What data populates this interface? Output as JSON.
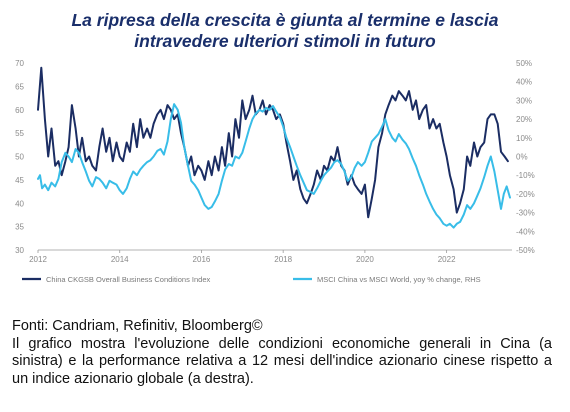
{
  "title": {
    "line1": "La ripresa della crescita è giunta al termine e lascia",
    "line2": "intravedere ulteriori stimoli in futuro"
  },
  "caption": {
    "source": "Fonti: Candriam, Refinitiv, Bloomberg©",
    "description": "Il grafico mostra l'evoluzione delle condizioni economiche generali in Cina (a sinistra) e la performance relativa a 12 mesi dell'indice azionario cinese rispetto a un indice azionario globale (a destra)."
  },
  "chart_data": {
    "type": "line",
    "title": "",
    "xlabel": "",
    "ylabel": "",
    "xlim": [
      2012.0,
      2023.6
    ],
    "x_ticks": [
      2012,
      2014,
      2016,
      2018,
      2020,
      2022
    ],
    "y_left": {
      "lim": [
        30,
        70
      ],
      "ticks": [
        30,
        35,
        40,
        45,
        50,
        55,
        60,
        65,
        70
      ]
    },
    "y_right": {
      "lim": [
        -50,
        50
      ],
      "ticks": [
        -50,
        -40,
        -30,
        -20,
        -10,
        0,
        10,
        20,
        30,
        40,
        50
      ],
      "tick_labels": [
        "-50%",
        "-40%",
        "-30%",
        "-20%",
        "-10%",
        "0%",
        "10%",
        "20%",
        "30%",
        "40%",
        "50%"
      ]
    },
    "grid": false,
    "legend_position": "bottom",
    "series": [
      {
        "name": "China CKGSB Overall Business Conditions Index",
        "axis": "left",
        "color": "#1b2d63",
        "points": [
          [
            2012.0,
            60
          ],
          [
            2012.08,
            69
          ],
          [
            2012.17,
            58
          ],
          [
            2012.25,
            50
          ],
          [
            2012.33,
            56
          ],
          [
            2012.42,
            48
          ],
          [
            2012.5,
            49
          ],
          [
            2012.58,
            46
          ],
          [
            2012.67,
            49
          ],
          [
            2012.75,
            52
          ],
          [
            2012.83,
            61
          ],
          [
            2012.92,
            56
          ],
          [
            2013.0,
            50
          ],
          [
            2013.08,
            54
          ],
          [
            2013.17,
            49
          ],
          [
            2013.25,
            50
          ],
          [
            2013.33,
            48
          ],
          [
            2013.42,
            47
          ],
          [
            2013.5,
            52
          ],
          [
            2013.58,
            56
          ],
          [
            2013.67,
            51
          ],
          [
            2013.75,
            54
          ],
          [
            2013.83,
            49
          ],
          [
            2013.92,
            53
          ],
          [
            2014.0,
            50
          ],
          [
            2014.08,
            49
          ],
          [
            2014.17,
            53
          ],
          [
            2014.25,
            51
          ],
          [
            2014.33,
            57
          ],
          [
            2014.42,
            52
          ],
          [
            2014.5,
            58
          ],
          [
            2014.58,
            54
          ],
          [
            2014.67,
            56
          ],
          [
            2014.75,
            54
          ],
          [
            2014.83,
            57
          ],
          [
            2014.92,
            59
          ],
          [
            2015.0,
            60
          ],
          [
            2015.08,
            58
          ],
          [
            2015.17,
            61
          ],
          [
            2015.25,
            60
          ],
          [
            2015.33,
            58
          ],
          [
            2015.42,
            59
          ],
          [
            2015.5,
            55
          ],
          [
            2015.58,
            52
          ],
          [
            2015.67,
            48
          ],
          [
            2015.75,
            50
          ],
          [
            2015.83,
            46
          ],
          [
            2015.92,
            48
          ],
          [
            2016.0,
            47
          ],
          [
            2016.08,
            45
          ],
          [
            2016.17,
            49
          ],
          [
            2016.25,
            46
          ],
          [
            2016.33,
            50
          ],
          [
            2016.42,
            47
          ],
          [
            2016.5,
            52
          ],
          [
            2016.58,
            48
          ],
          [
            2016.67,
            55
          ],
          [
            2016.75,
            50
          ],
          [
            2016.83,
            58
          ],
          [
            2016.92,
            54
          ],
          [
            2017.0,
            62
          ],
          [
            2017.08,
            58
          ],
          [
            2017.17,
            60
          ],
          [
            2017.25,
            63
          ],
          [
            2017.33,
            59
          ],
          [
            2017.42,
            60
          ],
          [
            2017.5,
            62
          ],
          [
            2017.58,
            59
          ],
          [
            2017.67,
            61
          ],
          [
            2017.75,
            60
          ],
          [
            2017.83,
            58
          ],
          [
            2017.92,
            59
          ],
          [
            2018.0,
            57
          ],
          [
            2018.08,
            53
          ],
          [
            2018.17,
            49
          ],
          [
            2018.25,
            45
          ],
          [
            2018.33,
            47
          ],
          [
            2018.42,
            43
          ],
          [
            2018.5,
            41
          ],
          [
            2018.58,
            40
          ],
          [
            2018.67,
            42
          ],
          [
            2018.75,
            44
          ],
          [
            2018.83,
            47
          ],
          [
            2018.92,
            45
          ],
          [
            2019.0,
            48
          ],
          [
            2019.08,
            47
          ],
          [
            2019.17,
            50
          ],
          [
            2019.25,
            49
          ],
          [
            2019.33,
            52
          ],
          [
            2019.42,
            48
          ],
          [
            2019.5,
            47
          ],
          [
            2019.58,
            44
          ],
          [
            2019.67,
            46
          ],
          [
            2019.75,
            44
          ],
          [
            2019.83,
            43
          ],
          [
            2019.92,
            42
          ],
          [
            2020.0,
            44
          ],
          [
            2020.08,
            37
          ],
          [
            2020.17,
            41
          ],
          [
            2020.25,
            45
          ],
          [
            2020.33,
            52
          ],
          [
            2020.42,
            55
          ],
          [
            2020.5,
            59
          ],
          [
            2020.58,
            61
          ],
          [
            2020.67,
            63
          ],
          [
            2020.75,
            62
          ],
          [
            2020.83,
            64
          ],
          [
            2020.92,
            63
          ],
          [
            2021.0,
            62
          ],
          [
            2021.08,
            64
          ],
          [
            2021.17,
            60
          ],
          [
            2021.25,
            62
          ],
          [
            2021.33,
            58
          ],
          [
            2021.42,
            60
          ],
          [
            2021.5,
            61
          ],
          [
            2021.58,
            56
          ],
          [
            2021.67,
            58
          ],
          [
            2021.75,
            56
          ],
          [
            2021.83,
            57
          ],
          [
            2021.92,
            53
          ],
          [
            2022.0,
            50
          ],
          [
            2022.08,
            46
          ],
          [
            2022.17,
            43
          ],
          [
            2022.25,
            38
          ],
          [
            2022.33,
            40
          ],
          [
            2022.42,
            43
          ],
          [
            2022.5,
            50
          ],
          [
            2022.58,
            48
          ],
          [
            2022.67,
            53
          ],
          [
            2022.75,
            50
          ],
          [
            2022.83,
            52
          ],
          [
            2022.92,
            53
          ],
          [
            2023.0,
            58
          ],
          [
            2023.08,
            59
          ],
          [
            2023.17,
            59
          ],
          [
            2023.25,
            57
          ],
          [
            2023.33,
            51
          ],
          [
            2023.42,
            50
          ],
          [
            2023.5,
            49
          ]
        ]
      },
      {
        "name": "MSCI China vs MSCI World, yoy % change, RHS",
        "axis": "right",
        "color": "#38bde8",
        "points": [
          [
            2012.0,
            -12
          ],
          [
            2012.05,
            -10
          ],
          [
            2012.1,
            -17
          ],
          [
            2012.17,
            -15
          ],
          [
            2012.25,
            -18
          ],
          [
            2012.33,
            -14
          ],
          [
            2012.42,
            -16
          ],
          [
            2012.5,
            -12
          ],
          [
            2012.58,
            -3
          ],
          [
            2012.67,
            2
          ],
          [
            2012.75,
            0
          ],
          [
            2012.83,
            -3
          ],
          [
            2012.92,
            4
          ],
          [
            2013.0,
            2
          ],
          [
            2013.08,
            -3
          ],
          [
            2013.17,
            -8
          ],
          [
            2013.25,
            -13
          ],
          [
            2013.33,
            -16
          ],
          [
            2013.42,
            -11
          ],
          [
            2013.5,
            -12
          ],
          [
            2013.58,
            -14
          ],
          [
            2013.67,
            -17
          ],
          [
            2013.75,
            -13
          ],
          [
            2013.83,
            -14
          ],
          [
            2013.92,
            -15
          ],
          [
            2014.0,
            -18
          ],
          [
            2014.08,
            -20
          ],
          [
            2014.17,
            -17
          ],
          [
            2014.25,
            -12
          ],
          [
            2014.33,
            -8
          ],
          [
            2014.42,
            -10
          ],
          [
            2014.5,
            -7
          ],
          [
            2014.58,
            -5
          ],
          [
            2014.67,
            -3
          ],
          [
            2014.75,
            -2
          ],
          [
            2014.83,
            0
          ],
          [
            2014.92,
            3
          ],
          [
            2015.0,
            4
          ],
          [
            2015.08,
            1
          ],
          [
            2015.17,
            8
          ],
          [
            2015.25,
            20
          ],
          [
            2015.33,
            28
          ],
          [
            2015.42,
            25
          ],
          [
            2015.5,
            18
          ],
          [
            2015.58,
            5
          ],
          [
            2015.67,
            -5
          ],
          [
            2015.75,
            -13
          ],
          [
            2015.83,
            -15
          ],
          [
            2015.92,
            -18
          ],
          [
            2016.0,
            -22
          ],
          [
            2016.08,
            -26
          ],
          [
            2016.17,
            -28
          ],
          [
            2016.25,
            -27
          ],
          [
            2016.33,
            -24
          ],
          [
            2016.42,
            -20
          ],
          [
            2016.5,
            -13
          ],
          [
            2016.58,
            -7
          ],
          [
            2016.67,
            -4
          ],
          [
            2016.75,
            -5
          ],
          [
            2016.83,
            0
          ],
          [
            2016.92,
            -1
          ],
          [
            2017.0,
            2
          ],
          [
            2017.08,
            8
          ],
          [
            2017.17,
            15
          ],
          [
            2017.25,
            20
          ],
          [
            2017.33,
            23
          ],
          [
            2017.42,
            25
          ],
          [
            2017.5,
            24
          ],
          [
            2017.58,
            26
          ],
          [
            2017.67,
            25
          ],
          [
            2017.75,
            27
          ],
          [
            2017.83,
            24
          ],
          [
            2017.92,
            21
          ],
          [
            2018.0,
            16
          ],
          [
            2018.08,
            10
          ],
          [
            2018.17,
            5
          ],
          [
            2018.25,
            0
          ],
          [
            2018.33,
            -5
          ],
          [
            2018.42,
            -10
          ],
          [
            2018.5,
            -14
          ],
          [
            2018.58,
            -18
          ],
          [
            2018.67,
            -19
          ],
          [
            2018.75,
            -20
          ],
          [
            2018.83,
            -17
          ],
          [
            2018.92,
            -13
          ],
          [
            2019.0,
            -10
          ],
          [
            2019.08,
            -8
          ],
          [
            2019.17,
            -6
          ],
          [
            2019.25,
            -3
          ],
          [
            2019.33,
            -2
          ],
          [
            2019.42,
            -4
          ],
          [
            2019.5,
            -8
          ],
          [
            2019.58,
            -13
          ],
          [
            2019.67,
            -11
          ],
          [
            2019.75,
            -6
          ],
          [
            2019.83,
            -3
          ],
          [
            2019.92,
            -5
          ],
          [
            2020.0,
            -3
          ],
          [
            2020.08,
            2
          ],
          [
            2020.17,
            8
          ],
          [
            2020.25,
            10
          ],
          [
            2020.33,
            12
          ],
          [
            2020.42,
            16
          ],
          [
            2020.5,
            20
          ],
          [
            2020.58,
            14
          ],
          [
            2020.67,
            10
          ],
          [
            2020.75,
            8
          ],
          [
            2020.83,
            12
          ],
          [
            2020.92,
            9
          ],
          [
            2021.0,
            7
          ],
          [
            2021.08,
            4
          ],
          [
            2021.17,
            -1
          ],
          [
            2021.25,
            -5
          ],
          [
            2021.33,
            -10
          ],
          [
            2021.42,
            -15
          ],
          [
            2021.5,
            -20
          ],
          [
            2021.58,
            -24
          ],
          [
            2021.67,
            -28
          ],
          [
            2021.75,
            -31
          ],
          [
            2021.83,
            -33
          ],
          [
            2021.92,
            -36
          ],
          [
            2022.0,
            -37
          ],
          [
            2022.08,
            -36
          ],
          [
            2022.17,
            -38
          ],
          [
            2022.25,
            -36
          ],
          [
            2022.33,
            -35
          ],
          [
            2022.42,
            -31
          ],
          [
            2022.5,
            -26
          ],
          [
            2022.58,
            -28
          ],
          [
            2022.67,
            -25
          ],
          [
            2022.75,
            -21
          ],
          [
            2022.83,
            -17
          ],
          [
            2022.92,
            -11
          ],
          [
            2023.0,
            -5
          ],
          [
            2023.08,
            0
          ],
          [
            2023.17,
            -8
          ],
          [
            2023.25,
            -18
          ],
          [
            2023.33,
            -28
          ],
          [
            2023.4,
            -20
          ],
          [
            2023.47,
            -16
          ],
          [
            2023.55,
            -22
          ]
        ]
      }
    ]
  }
}
